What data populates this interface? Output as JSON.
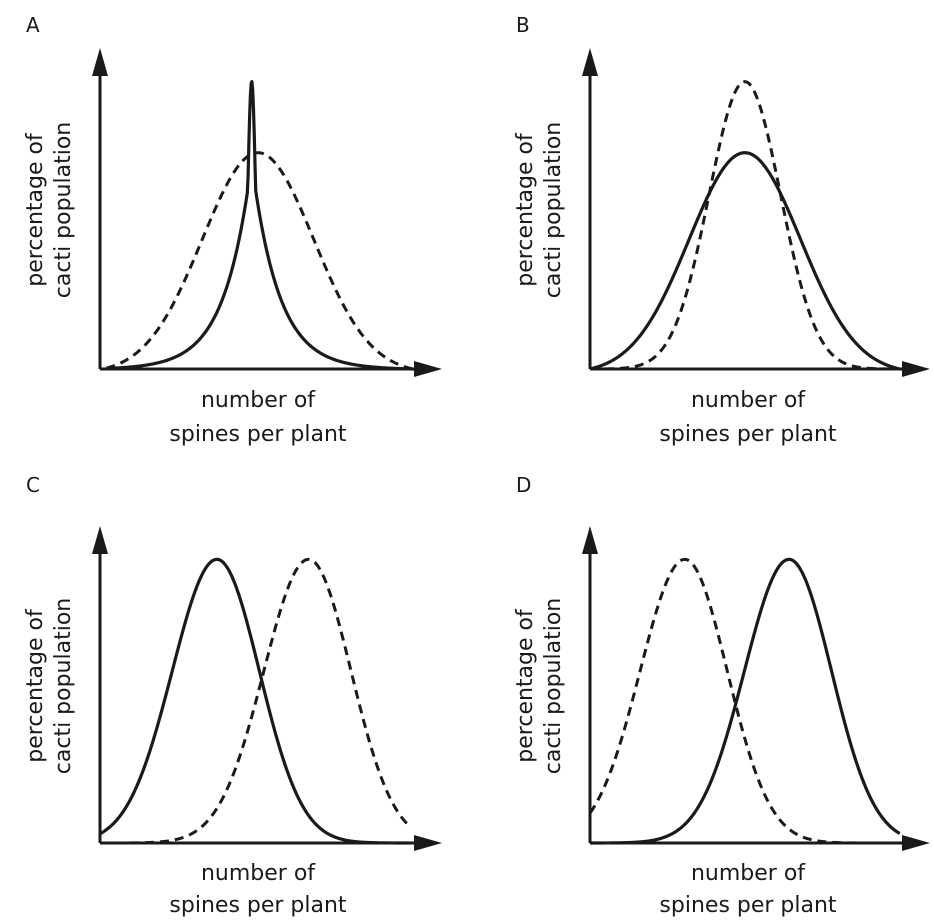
{
  "chart_data": [
    {
      "type": "line",
      "title": "A",
      "xlabel_lines": [
        "number of",
        "spines per plant"
      ],
      "ylabel_lines": [
        "percentage of",
        "cacti population"
      ],
      "series": [
        {
          "style": "solid",
          "shape": "narrow-peak",
          "mean": 0.48,
          "peak": 0.93
        },
        {
          "style": "dashed",
          "shape": "wide-bell",
          "mean": 0.5,
          "peak": 0.7
        }
      ]
    },
    {
      "type": "line",
      "title": "B",
      "xlabel_lines": [
        "number of",
        "spines per plant"
      ],
      "ylabel_lines": [
        "percentage of",
        "cacti population"
      ],
      "series": [
        {
          "style": "solid",
          "shape": "wide-bell",
          "mean": 0.49,
          "peak": 0.7
        },
        {
          "style": "dashed",
          "shape": "narrow-bell",
          "mean": 0.49,
          "peak": 0.93
        }
      ]
    },
    {
      "type": "line",
      "title": "C",
      "xlabel_lines": [
        "number of",
        "spines per plant"
      ],
      "ylabel_lines": [
        "percentage of",
        "cacti population"
      ],
      "series": [
        {
          "style": "solid",
          "shape": "bell",
          "mean": 0.37,
          "peak": 0.93
        },
        {
          "style": "dashed",
          "shape": "bell",
          "mean": 0.66,
          "peak": 0.93
        }
      ]
    },
    {
      "type": "line",
      "title": "D",
      "xlabel_lines": [
        "number of",
        "spines per plant"
      ],
      "ylabel_lines": [
        "percentage of",
        "cacti population"
      ],
      "series": [
        {
          "style": "solid",
          "shape": "bell",
          "mean": 0.63,
          "peak": 0.93
        },
        {
          "style": "dashed",
          "shape": "bell",
          "mean": 0.3,
          "peak": 0.93
        }
      ]
    }
  ]
}
